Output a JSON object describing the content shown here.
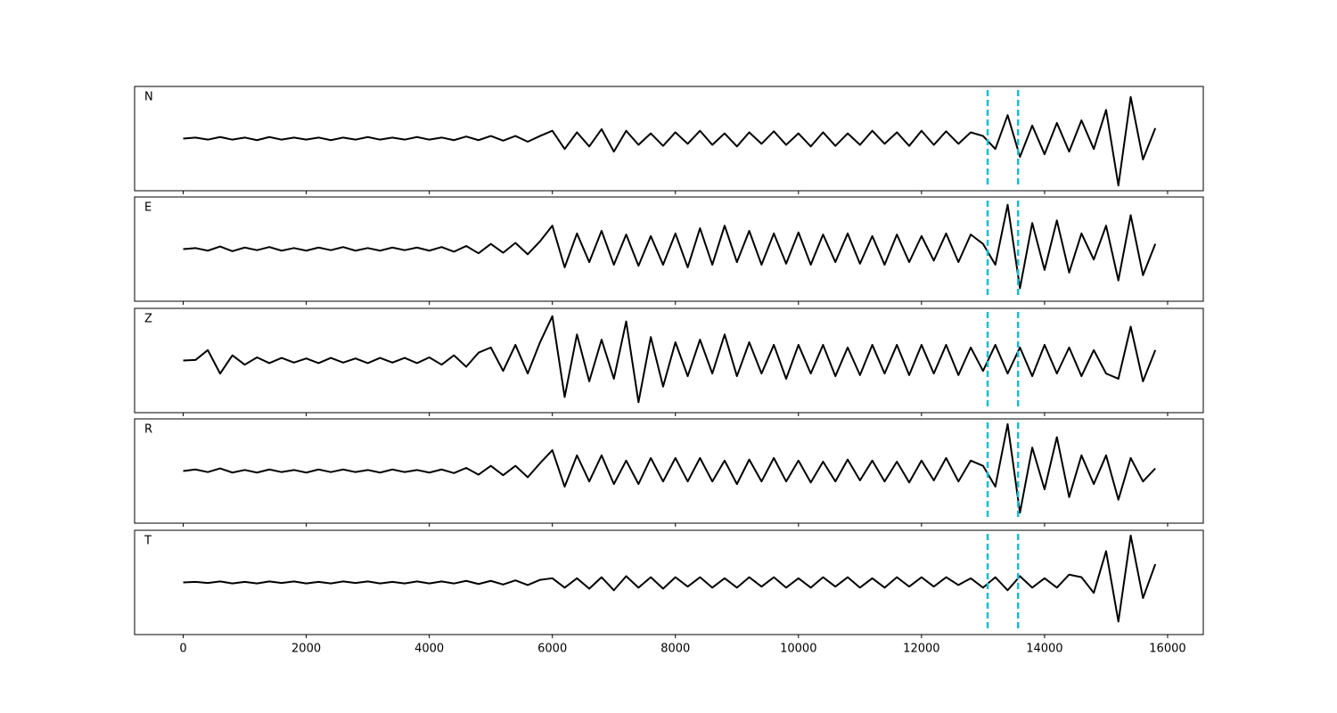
{
  "chart_data": {
    "type": "line",
    "color": "#000000",
    "marker_color": "#17becf",
    "xlim": [
      -790,
      16580
    ],
    "xticks": [
      0,
      2000,
      4000,
      6000,
      8000,
      10000,
      12000,
      14000,
      16000
    ],
    "ylim": [
      -1,
      1
    ],
    "markers": [
      13075,
      13570
    ],
    "x": [
      0,
      200,
      400,
      600,
      800,
      1000,
      1200,
      1400,
      1600,
      1800,
      2000,
      2200,
      2400,
      2600,
      2800,
      3000,
      3200,
      3400,
      3600,
      3800,
      4000,
      4200,
      4400,
      4600,
      4800,
      5000,
      5200,
      5400,
      5600,
      5800,
      6000,
      6200,
      6400,
      6600,
      6800,
      7000,
      7200,
      7400,
      7600,
      7800,
      8000,
      8200,
      8400,
      8600,
      8800,
      9000,
      9200,
      9400,
      9600,
      9800,
      10000,
      10200,
      10400,
      10600,
      10800,
      11000,
      11200,
      11400,
      11600,
      11800,
      12000,
      12200,
      12400,
      12600,
      12800,
      13000,
      13200,
      13400,
      13600,
      13800,
      14000,
      14200,
      14400,
      14600,
      14800,
      15000,
      15200,
      15400,
      15600,
      15800
    ],
    "series": [
      {
        "name": "N",
        "values": [
          0,
          0.02,
          -0.02,
          0.03,
          -0.02,
          0.02,
          -0.03,
          0.03,
          -0.02,
          0.02,
          -0.02,
          0.02,
          -0.03,
          0.02,
          -0.02,
          0.03,
          -0.02,
          0.02,
          -0.02,
          0.03,
          -0.02,
          0.02,
          -0.03,
          0.04,
          -0.03,
          0.05,
          -0.04,
          0.05,
          -0.06,
          0.05,
          0.15,
          -0.2,
          0.12,
          -0.15,
          0.18,
          -0.25,
          0.15,
          -0.12,
          0.1,
          -0.14,
          0.12,
          -0.1,
          0.15,
          -0.12,
          0.1,
          -0.15,
          0.12,
          -0.1,
          0.14,
          -0.12,
          0.1,
          -0.15,
          0.12,
          -0.14,
          0.1,
          -0.12,
          0.15,
          -0.1,
          0.12,
          -0.14,
          0.15,
          -0.12,
          0.14,
          -0.1,
          0.12,
          0.05,
          -0.2,
          0.45,
          -0.35,
          0.25,
          -0.3,
          0.3,
          -0.25,
          0.35,
          -0.2,
          0.55,
          -0.9,
          0.8,
          -0.4,
          0.2
        ]
      },
      {
        "name": "E",
        "values": [
          0,
          0.02,
          -0.03,
          0.05,
          -0.04,
          0.03,
          -0.02,
          0.04,
          -0.03,
          0.02,
          -0.03,
          0.03,
          -0.02,
          0.04,
          -0.03,
          0.02,
          -0.03,
          0.03,
          -0.02,
          0.03,
          -0.03,
          0.04,
          -0.05,
          0.06,
          -0.08,
          0.1,
          -0.07,
          0.12,
          -0.1,
          0.15,
          0.45,
          -0.35,
          0.3,
          -0.25,
          0.35,
          -0.3,
          0.28,
          -0.32,
          0.25,
          -0.3,
          0.3,
          -0.35,
          0.4,
          -0.3,
          0.45,
          -0.25,
          0.35,
          -0.3,
          0.3,
          -0.28,
          0.32,
          -0.3,
          0.28,
          -0.25,
          0.3,
          -0.28,
          0.25,
          -0.3,
          0.28,
          -0.25,
          0.25,
          -0.22,
          0.3,
          -0.25,
          0.28,
          0.1,
          -0.3,
          0.85,
          -0.75,
          0.5,
          -0.4,
          0.55,
          -0.45,
          0.3,
          -0.2,
          0.45,
          -0.6,
          0.65,
          -0.5,
          0.1
        ]
      },
      {
        "name": "Z",
        "values": [
          0,
          0.01,
          0.2,
          -0.25,
          0.1,
          -0.08,
          0.06,
          -0.05,
          0.05,
          -0.04,
          0.04,
          -0.05,
          0.05,
          -0.04,
          0.04,
          -0.05,
          0.05,
          -0.04,
          0.05,
          -0.05,
          0.06,
          -0.08,
          0.1,
          -0.12,
          0.15,
          0.25,
          -0.2,
          0.3,
          -0.25,
          0.35,
          0.85,
          -0.7,
          0.5,
          -0.4,
          0.4,
          -0.35,
          0.75,
          -0.8,
          0.45,
          -0.5,
          0.35,
          -0.3,
          0.4,
          -0.25,
          0.5,
          -0.3,
          0.35,
          -0.25,
          0.3,
          -0.35,
          0.3,
          -0.25,
          0.3,
          -0.3,
          0.25,
          -0.28,
          0.3,
          -0.25,
          0.3,
          -0.28,
          0.3,
          -0.25,
          0.3,
          -0.28,
          0.25,
          -0.2,
          0.3,
          -0.25,
          0.25,
          -0.3,
          0.3,
          -0.25,
          0.25,
          -0.3,
          0.2,
          -0.25,
          -0.35,
          0.65,
          -0.4,
          0.2
        ]
      },
      {
        "name": "R",
        "values": [
          0,
          0.03,
          -0.02,
          0.05,
          -0.03,
          0.02,
          -0.03,
          0.03,
          -0.02,
          0.02,
          -0.03,
          0.03,
          -0.02,
          0.03,
          -0.02,
          0.02,
          -0.03,
          0.03,
          -0.02,
          0.02,
          -0.03,
          0.03,
          -0.04,
          0.06,
          -0.07,
          0.1,
          -0.08,
          0.1,
          -0.12,
          0.15,
          0.4,
          -0.3,
          0.3,
          -0.2,
          0.3,
          -0.25,
          0.2,
          -0.25,
          0.25,
          -0.2,
          0.25,
          -0.2,
          0.25,
          -0.2,
          0.2,
          -0.25,
          0.22,
          -0.2,
          0.25,
          -0.2,
          0.2,
          -0.22,
          0.18,
          -0.2,
          0.22,
          -0.18,
          0.2,
          -0.2,
          0.18,
          -0.22,
          0.2,
          -0.18,
          0.25,
          -0.2,
          0.2,
          0.1,
          -0.3,
          0.9,
          -0.8,
          0.45,
          -0.35,
          0.65,
          -0.5,
          0.3,
          -0.25,
          0.3,
          -0.55,
          0.25,
          -0.2,
          0.05
        ]
      },
      {
        "name": "T",
        "values": [
          0,
          0.01,
          -0.01,
          0.02,
          -0.02,
          0.01,
          -0.02,
          0.02,
          -0.01,
          0.02,
          -0.02,
          0.01,
          -0.02,
          0.02,
          -0.01,
          0.02,
          -0.02,
          0.01,
          -0.02,
          0.02,
          -0.02,
          0.02,
          -0.02,
          0.03,
          -0.03,
          0.03,
          -0.04,
          0.04,
          -0.05,
          0.05,
          0.08,
          -0.1,
          0.08,
          -0.12,
          0.1,
          -0.15,
          0.12,
          -0.1,
          0.1,
          -0.12,
          0.1,
          -0.08,
          0.1,
          -0.1,
          0.08,
          -0.1,
          0.1,
          -0.08,
          0.1,
          -0.1,
          0.08,
          -0.1,
          0.1,
          -0.08,
          0.1,
          -0.1,
          0.08,
          -0.1,
          0.1,
          -0.08,
          0.1,
          -0.08,
          0.1,
          -0.05,
          0.08,
          -0.1,
          0.1,
          -0.15,
          0.12,
          -0.1,
          0.08,
          -0.1,
          0.15,
          0.1,
          -0.2,
          0.6,
          -0.75,
          0.9,
          -0.3,
          0.35
        ]
      }
    ]
  }
}
